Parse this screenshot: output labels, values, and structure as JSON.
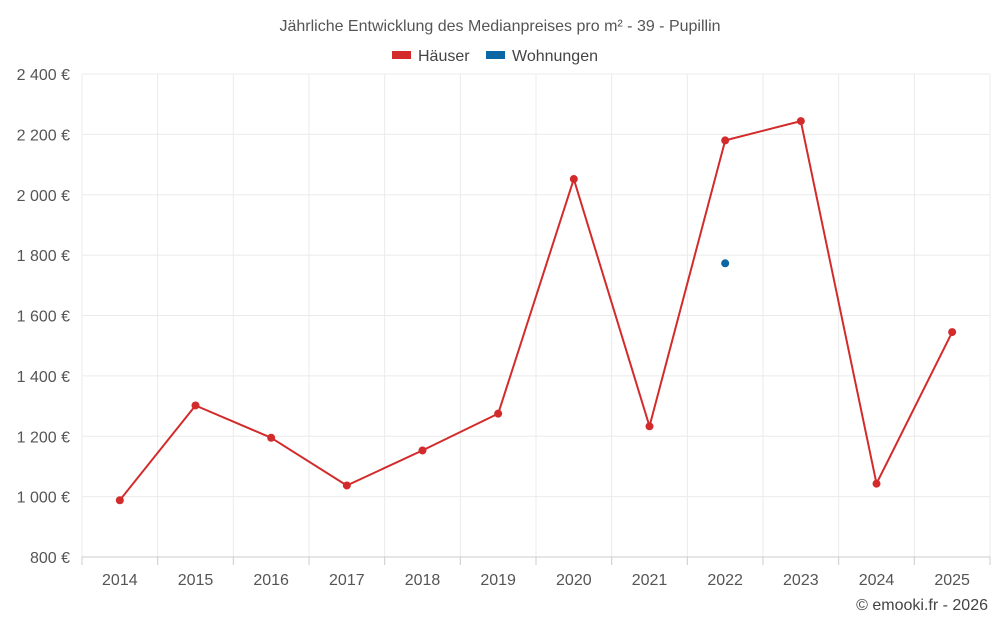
{
  "chart_data": {
    "type": "line",
    "title": "Jährliche Entwicklung des Medianpreises pro m² - 39 - Pupillin",
    "categories": [
      "2014",
      "2015",
      "2016",
      "2017",
      "2018",
      "2019",
      "2020",
      "2021",
      "2022",
      "2023",
      "2024",
      "2025"
    ],
    "series": [
      {
        "name": "Häuser",
        "color": "#d32b2b",
        "values": [
          988,
          1302,
          1195,
          1037,
          1153,
          1275,
          2052,
          1233,
          2180,
          2244,
          1043,
          1545
        ]
      },
      {
        "name": "Wohnungen",
        "color": "#0b66a3",
        "values": [
          null,
          null,
          null,
          null,
          null,
          null,
          null,
          null,
          1773,
          null,
          null,
          null
        ]
      }
    ],
    "ylim": [
      800,
      2400
    ],
    "yticks": [
      800,
      1000,
      1200,
      1400,
      1600,
      1800,
      2000,
      2200,
      2400
    ],
    "ytick_labels": [
      "800 €",
      "1 000 €",
      "1 200 €",
      "1 400 €",
      "1 600 €",
      "1 800 €",
      "2 000 €",
      "2 200 €",
      "2 400 €"
    ],
    "grid": true,
    "legend_position": "top"
  },
  "credit": "© emooki.fr - 2026"
}
